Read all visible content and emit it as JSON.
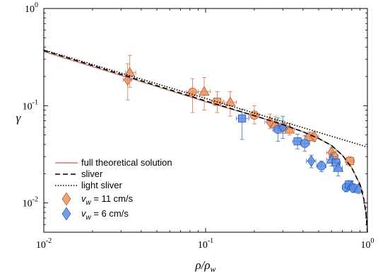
{
  "chart_data": {
    "type": "scatter",
    "xscale": "log",
    "yscale": "log",
    "xlim": [
      0.01,
      1
    ],
    "ylim": [
      0.005,
      1
    ],
    "xlabel": "ρ/ρ_w",
    "ylabel": "γ",
    "x_ticks": [
      {
        "value": 0.01,
        "base": "10",
        "exp": "-2"
      },
      {
        "value": 0.1,
        "base": "10",
        "exp": "-1"
      },
      {
        "value": 1,
        "base": "10",
        "exp": "0"
      }
    ],
    "y_ticks": [
      {
        "value": 0.01,
        "base": "10",
        "exp": "-2"
      },
      {
        "value": 0.1,
        "base": "10",
        "exp": "-1"
      },
      {
        "value": 1,
        "base": "10",
        "exp": "0"
      }
    ],
    "grid": false,
    "legend_position": "bottom-left",
    "lines": [
      {
        "name": "full theoretical solution",
        "style": "solid",
        "color": "#c47f75",
        "points": [
          [
            0.01,
            0.36
          ],
          [
            0.03,
            0.205
          ],
          [
            0.1,
            0.11
          ],
          [
            0.2,
            0.079
          ],
          [
            0.3,
            0.064
          ],
          [
            0.4,
            0.054
          ],
          [
            0.5,
            0.046
          ],
          [
            0.6,
            0.039
          ],
          [
            0.7,
            0.031
          ],
          [
            0.8,
            0.023
          ],
          [
            0.9,
            0.0155
          ],
          [
            0.95,
            0.011
          ],
          [
            0.98,
            0.0078
          ],
          [
            1.0,
            0.005
          ]
        ]
      },
      {
        "name": "sliver",
        "style": "dashed",
        "color": "#000000",
        "points": [
          [
            0.01,
            0.37
          ],
          [
            0.03,
            0.21
          ],
          [
            0.1,
            0.112
          ],
          [
            0.2,
            0.079
          ],
          [
            0.3,
            0.064
          ],
          [
            0.4,
            0.054
          ],
          [
            0.5,
            0.046
          ],
          [
            0.6,
            0.039
          ],
          [
            0.7,
            0.031
          ],
          [
            0.8,
            0.023
          ],
          [
            0.9,
            0.0155
          ],
          [
            0.95,
            0.011
          ],
          [
            0.98,
            0.0078
          ],
          [
            1.0,
            0.005
          ]
        ]
      },
      {
        "name": "light sliver",
        "style": "dotted",
        "color": "#000000",
        "points": [
          [
            0.01,
            0.375
          ],
          [
            0.1,
            0.119
          ],
          [
            1.0,
            0.0376
          ]
        ]
      }
    ],
    "series": [
      {
        "name": "v_w = 11 cm/s",
        "label_var": "v",
        "label_sub": "w",
        "label_rest": " = 11 cm/s",
        "color": "#f0935e",
        "edge": "#a0522d",
        "errcolor": "#d9825a",
        "points": [
          {
            "x": 0.033,
            "y": 0.185,
            "marker": "diamond",
            "ylo": 0.115,
            "yhi": 0.27,
            "xlo": 0.031,
            "xhi": 0.035
          },
          {
            "x": 0.034,
            "y": 0.22,
            "marker": "triangle",
            "ylo": 0.155,
            "yhi": 0.33,
            "xlo": 0.032,
            "xhi": 0.037
          },
          {
            "x": 0.083,
            "y": 0.138,
            "marker": "circle",
            "ylo": 0.085,
            "yhi": 0.19,
            "xlo": 0.076,
            "xhi": 0.09
          },
          {
            "x": 0.098,
            "y": 0.14,
            "marker": "triangle",
            "ylo": 0.09,
            "yhi": 0.195,
            "xlo": 0.09,
            "xhi": 0.107
          },
          {
            "x": 0.118,
            "y": 0.11,
            "marker": "square",
            "ylo": 0.085,
            "yhi": 0.14,
            "xlo": 0.108,
            "xhi": 0.128
          },
          {
            "x": 0.142,
            "y": 0.109,
            "marker": "triangle",
            "ylo": 0.078,
            "yhi": 0.14,
            "xlo": 0.13,
            "xhi": 0.155
          },
          {
            "x": 0.2,
            "y": 0.08,
            "marker": "circle",
            "ylo": 0.065,
            "yhi": 0.1,
            "xlo": 0.185,
            "xhi": 0.215
          },
          {
            "x": 0.25,
            "y": 0.068,
            "marker": "diamond",
            "ylo": 0.058,
            "yhi": 0.082,
            "xlo": 0.232,
            "xhi": 0.27
          },
          {
            "x": 0.27,
            "y": 0.065,
            "marker": "triangle",
            "ylo": 0.055,
            "yhi": 0.078,
            "xlo": 0.25,
            "xhi": 0.29
          },
          {
            "x": 0.3,
            "y": 0.06,
            "marker": "square",
            "ylo": 0.052,
            "yhi": 0.07,
            "xlo": 0.28,
            "xhi": 0.32
          },
          {
            "x": 0.33,
            "y": 0.057,
            "marker": "triangle",
            "ylo": 0.05,
            "yhi": 0.066,
            "xlo": 0.31,
            "xhi": 0.355
          },
          {
            "x": 0.44,
            "y": 0.048,
            "marker": "square",
            "ylo": 0.043,
            "yhi": 0.054,
            "xlo": 0.41,
            "xhi": 0.47
          },
          {
            "x": 0.47,
            "y": 0.048,
            "marker": "diamond",
            "ylo": 0.043,
            "yhi": 0.054,
            "xlo": 0.44,
            "xhi": 0.5
          },
          {
            "x": 0.6,
            "y": 0.033,
            "marker": "diamond",
            "ylo": 0.029,
            "yhi": 0.037,
            "xlo": 0.56,
            "xhi": 0.64
          },
          {
            "x": 0.62,
            "y": 0.03,
            "marker": "circle",
            "ylo": 0.026,
            "yhi": 0.034,
            "xlo": 0.58,
            "xhi": 0.66
          },
          {
            "x": 0.78,
            "y": 0.027,
            "marker": "square",
            "ylo": 0.024,
            "yhi": 0.03,
            "xlo": 0.73,
            "xhi": 0.83
          }
        ]
      },
      {
        "name": "v_w = 6 cm/s",
        "label_var": "v",
        "label_sub": "w",
        "label_rest": " = 6 cm/s",
        "color": "#5a8ee8",
        "edge": "#1f4fa8",
        "errcolor": "#4a7fd0",
        "points": [
          {
            "x": 0.168,
            "y": 0.074,
            "marker": "square",
            "ylo": 0.045,
            "yhi": 0.092,
            "xlo": 0.155,
            "xhi": 0.185
          },
          {
            "x": 0.28,
            "y": 0.057,
            "marker": "circle",
            "ylo": 0.043,
            "yhi": 0.075,
            "xlo": 0.26,
            "xhi": 0.3
          },
          {
            "x": 0.3,
            "y": 0.06,
            "marker": "diamond",
            "ylo": 0.046,
            "yhi": 0.078,
            "xlo": 0.28,
            "xhi": 0.32
          },
          {
            "x": 0.37,
            "y": 0.043,
            "marker": "square",
            "ylo": 0.036,
            "yhi": 0.051,
            "xlo": 0.345,
            "xhi": 0.395
          },
          {
            "x": 0.41,
            "y": 0.041,
            "marker": "circle",
            "ylo": 0.034,
            "yhi": 0.049,
            "xlo": 0.385,
            "xhi": 0.44
          },
          {
            "x": 0.45,
            "y": 0.027,
            "marker": "diamond",
            "ylo": 0.023,
            "yhi": 0.031,
            "xlo": 0.42,
            "xhi": 0.48
          },
          {
            "x": 0.52,
            "y": 0.024,
            "marker": "circle",
            "ylo": 0.021,
            "yhi": 0.027,
            "xlo": 0.485,
            "xhi": 0.555
          },
          {
            "x": 0.6,
            "y": 0.028,
            "marker": "triangle",
            "ylo": 0.024,
            "yhi": 0.032,
            "xlo": 0.56,
            "xhi": 0.64
          },
          {
            "x": 0.64,
            "y": 0.026,
            "marker": "square",
            "ylo": 0.022,
            "yhi": 0.03,
            "xlo": 0.6,
            "xhi": 0.68
          },
          {
            "x": 0.66,
            "y": 0.023,
            "marker": "triangle",
            "ylo": 0.019,
            "yhi": 0.026,
            "xlo": 0.62,
            "xhi": 0.7
          },
          {
            "x": 0.74,
            "y": 0.0145,
            "marker": "circle",
            "ylo": 0.013,
            "yhi": 0.016,
            "xlo": 0.7,
            "xhi": 0.78
          },
          {
            "x": 0.77,
            "y": 0.0155,
            "marker": "square",
            "ylo": 0.014,
            "yhi": 0.017,
            "xlo": 0.73,
            "xhi": 0.81
          },
          {
            "x": 0.8,
            "y": 0.015,
            "marker": "triangle",
            "ylo": 0.0135,
            "yhi": 0.0168,
            "xlo": 0.76,
            "xhi": 0.84
          },
          {
            "x": 0.82,
            "y": 0.0142,
            "marker": "circle",
            "ylo": 0.0128,
            "yhi": 0.0158,
            "xlo": 0.78,
            "xhi": 0.86
          },
          {
            "x": 0.88,
            "y": 0.014,
            "marker": "triangle",
            "ylo": 0.0125,
            "yhi": 0.0155,
            "xlo": 0.84,
            "xhi": 0.92
          }
        ]
      }
    ]
  }
}
